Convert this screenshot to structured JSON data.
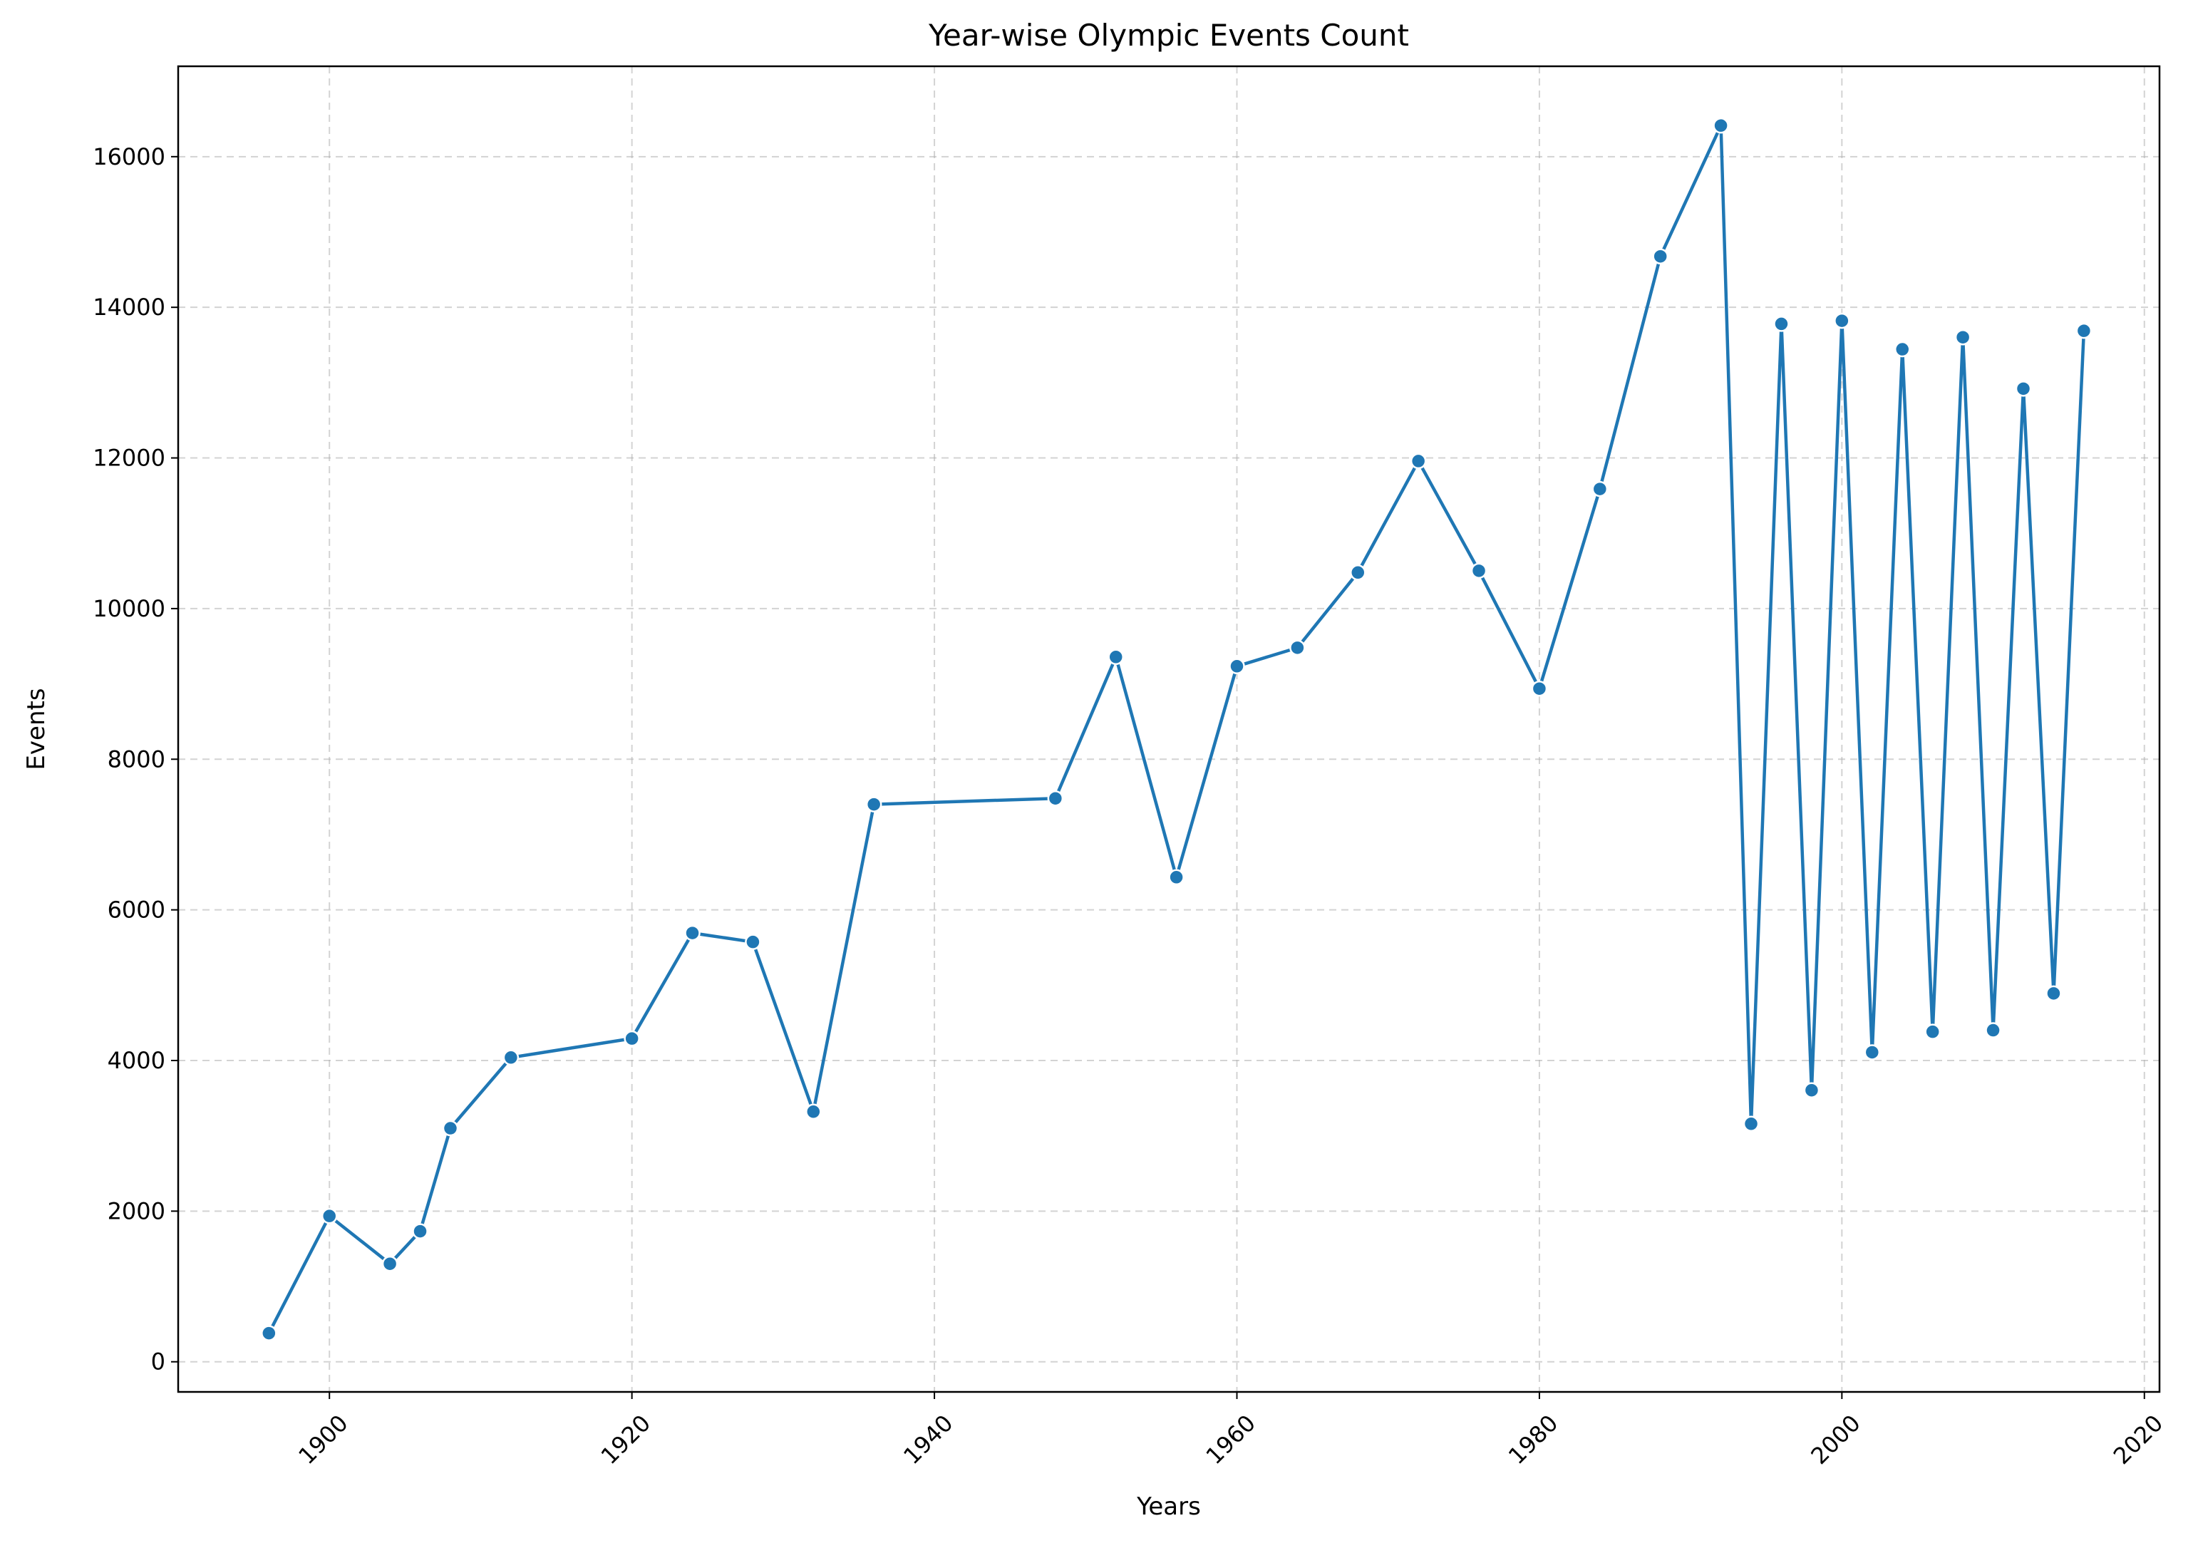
{
  "chart_data": {
    "type": "line",
    "title": "Year-wise Olympic Events Count",
    "xlabel": "Years",
    "ylabel": "Events",
    "xlim": [
      1890,
      2021
    ],
    "ylim": [
      -400,
      17200
    ],
    "xticks": [
      1900,
      1920,
      1940,
      1960,
      1980,
      2000,
      2020
    ],
    "yticks": [
      0,
      2000,
      4000,
      6000,
      8000,
      10000,
      12000,
      14000,
      16000
    ],
    "grid": true,
    "legend": "none",
    "color": "#1f77b4",
    "series": [
      {
        "x": [
          1896,
          1900,
          1904,
          1906,
          1908,
          1912,
          1920,
          1924,
          1928,
          1932,
          1936,
          1948,
          1952,
          1956,
          1960,
          1964,
          1968,
          1972,
          1976,
          1980,
          1984,
          1988,
          1992,
          1994,
          1996,
          1998,
          2000,
          2002,
          2004,
          2006,
          2008,
          2010,
          2012,
          2014,
          2016
        ],
        "values": [
          380,
          1936,
          1301,
          1733,
          3101,
          4040,
          4292,
          5693,
          5574,
          3321,
          7401,
          7480,
          9358,
          6434,
          9235,
          9480,
          10479,
          11959,
          10502,
          8937,
          11588,
          14676,
          16413,
          3160,
          13780,
          3605,
          13821,
          4109,
          13443,
          4382,
          13602,
          4402,
          12920,
          4891,
          13688
        ]
      }
    ]
  }
}
